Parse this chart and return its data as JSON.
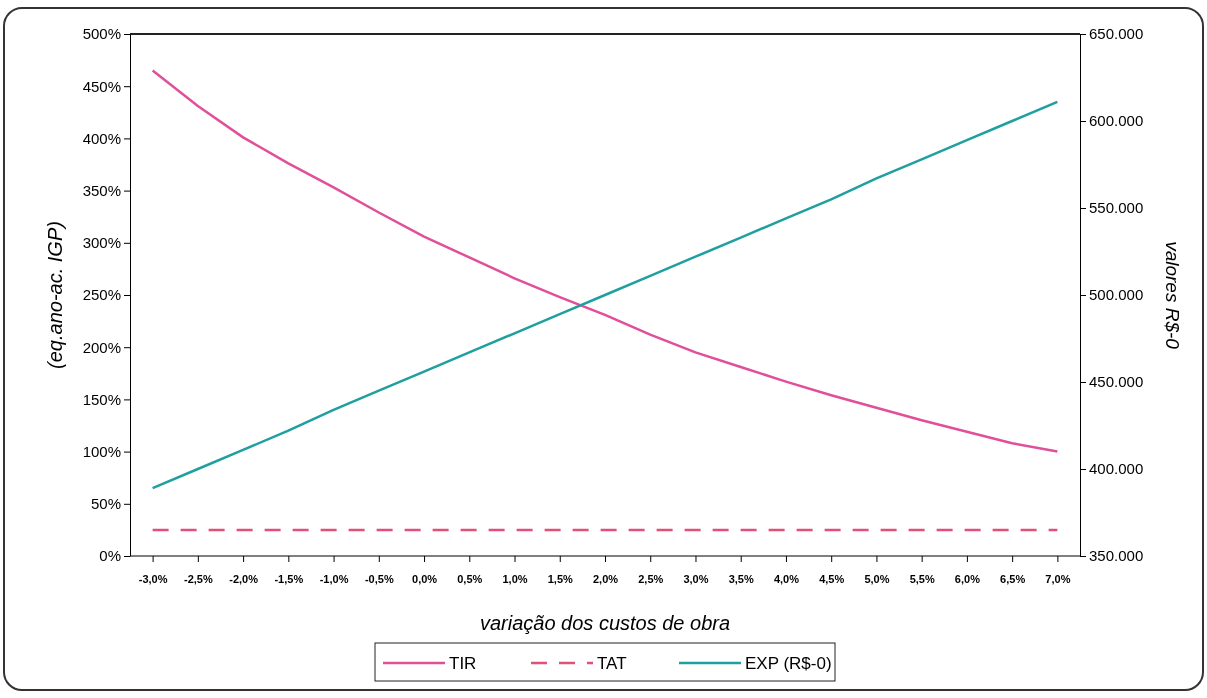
{
  "chart_data": {
    "type": "line",
    "xlabel": "variação dos custos de obra",
    "ylabel": "(eq.ano-ac. IGP)",
    "y2label": "valores R$-0",
    "categories": [
      "-3,0%",
      "-2,5%",
      "-2,0%",
      "-1,5%",
      "-1,0%",
      "-0,5%",
      "0,0%",
      "0,5%",
      "1,0%",
      "1,5%",
      "2,0%",
      "2,5%",
      "3,0%",
      "3,5%",
      "4,0%",
      "4,5%",
      "5,0%",
      "5,5%",
      "6,0%",
      "6,5%",
      "7,0%"
    ],
    "series": [
      {
        "name": "TIR",
        "color": "#e0509a",
        "values": [
          465,
          431,
          401,
          376,
          353,
          329,
          306,
          286,
          266,
          248,
          231,
          212,
          195,
          181,
          167,
          154,
          142,
          130,
          119,
          108,
          100
        ]
      },
      {
        "name": "TAT",
        "color": "#e0507a",
        "line_style": "dashed",
        "values": [
          25,
          25,
          25,
          25,
          25,
          25,
          25,
          25,
          25,
          25,
          25,
          25,
          25,
          25,
          25,
          25,
          25,
          25,
          25,
          25,
          25
        ]
      },
      {
        "name": "EXP (R$-0)",
        "color": "#1f9fa0",
        "axis": "y2",
        "values": [
          389000,
          400000,
          411000,
          422000,
          434000,
          445000,
          456000,
          467000,
          478000,
          489000,
          500000,
          511000,
          522000,
          533000,
          544000,
          555000,
          567000,
          578000,
          589000,
          600000,
          611000
        ]
      }
    ],
    "ylim": [
      0,
      500
    ],
    "yticks": [
      {
        "value": 0,
        "label": "0%"
      },
      {
        "value": 50,
        "label": "50%"
      },
      {
        "value": 100,
        "label": "100%"
      },
      {
        "value": 150,
        "label": "150%"
      },
      {
        "value": 200,
        "label": "200%"
      },
      {
        "value": 250,
        "label": "250%"
      },
      {
        "value": 300,
        "label": "300%"
      },
      {
        "value": 350,
        "label": "350%"
      },
      {
        "value": 400,
        "label": "400%"
      },
      {
        "value": 450,
        "label": "450%"
      },
      {
        "value": 500,
        "label": "500%"
      }
    ],
    "y2lim": [
      350000,
      650000
    ],
    "y2ticks": [
      {
        "value": 350000,
        "label": "350.000"
      },
      {
        "value": 400000,
        "label": "400.000"
      },
      {
        "value": 450000,
        "label": "450.000"
      },
      {
        "value": 500000,
        "label": "500.000"
      },
      {
        "value": 550000,
        "label": "550.000"
      },
      {
        "value": 600000,
        "label": "600.000"
      },
      {
        "value": 650000,
        "label": "650.000"
      }
    ],
    "grid": false,
    "legend": "bottom",
    "marker": "none",
    "line_style": "solid"
  }
}
